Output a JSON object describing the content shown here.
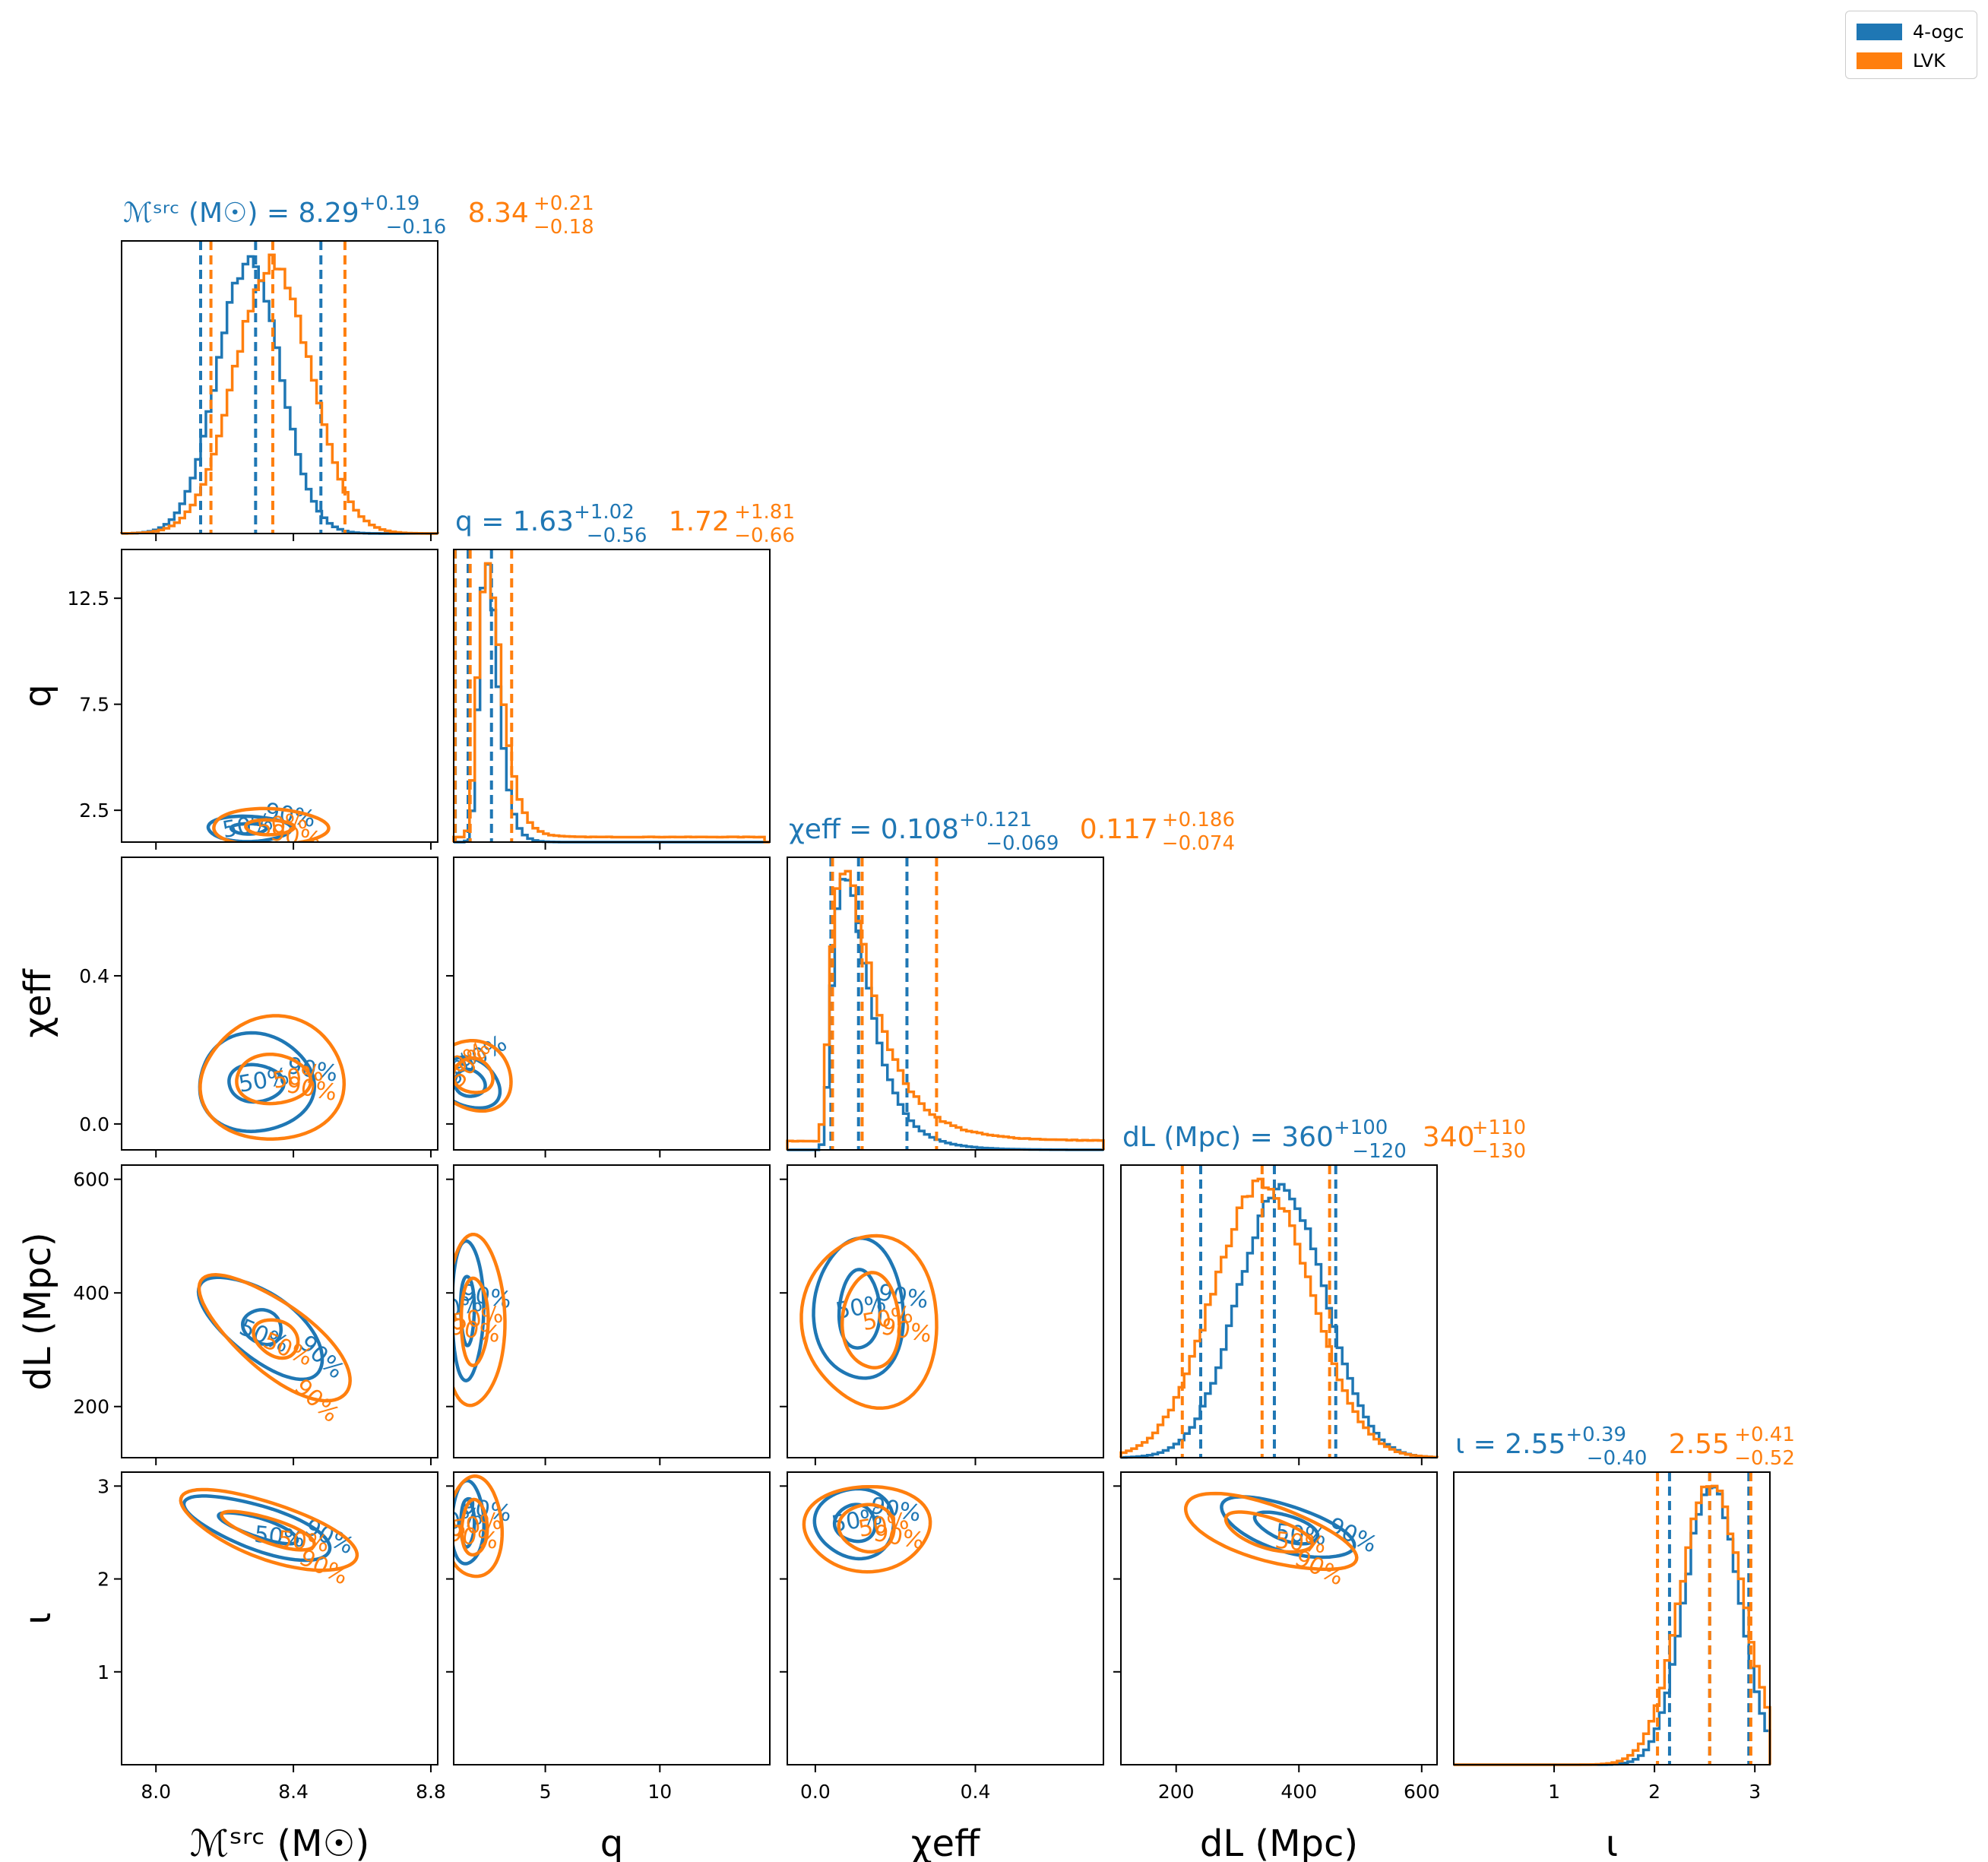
{
  "colors": {
    "s4ogc": "#1f77b4",
    "lvk": "#ff7f0e",
    "axis": "#000000",
    "legend_border": "#cccccc"
  },
  "legend": {
    "items": [
      {
        "label": "4-ogc",
        "color": "#1f77b4"
      },
      {
        "label": "LVK",
        "color": "#ff7f0e"
      }
    ],
    "placement": "top-right"
  },
  "chart_data": {
    "type": "corner",
    "grid": false,
    "series": [
      {
        "name": "4-ogc",
        "color": "#1f77b4"
      },
      {
        "name": "LVK",
        "color": "#ff7f0e"
      }
    ],
    "parameters": [
      {
        "key": "mchirp",
        "xlabel": "ℳˢʳᶜ (M☉)",
        "ylabel": "ℳˢʳᶜ (M☉)",
        "range": [
          7.9,
          8.82
        ],
        "ticks": [
          8.0,
          8.4,
          8.8
        ],
        "tick_labels": [
          "8.0",
          "8.4",
          "8.8"
        ],
        "title": {
          "prefix": "ℳˢʳᶜ (M☉) = ",
          "series": [
            {
              "median": "8.29",
              "plus": "+0.19",
              "minus": "−0.16"
            },
            {
              "median": "8.34",
              "plus": "+0.21",
              "minus": "−0.18"
            }
          ]
        },
        "stats": [
          {
            "median": 8.29,
            "lo": 8.13,
            "hi": 8.48
          },
          {
            "median": 8.34,
            "lo": 8.16,
            "hi": 8.55
          }
        ],
        "dist": [
          {
            "kind": "gauss",
            "mu": 8.27,
            "sd": 0.092
          },
          {
            "kind": "gauss",
            "mu": 8.34,
            "sd": 0.11
          }
        ]
      },
      {
        "key": "q",
        "xlabel": "q",
        "ylabel": "q",
        "range": [
          1.0,
          14.8
        ],
        "ticks": [
          5,
          10
        ],
        "tick_labels": [
          "5",
          "10"
        ],
        "yticks": [
          2.5,
          7.5,
          12.5
        ],
        "ytick_labels": [
          "2.5",
          "7.5",
          "12.5"
        ],
        "title": {
          "prefix": "q = ",
          "series": [
            {
              "median": "1.63",
              "plus": "+1.02",
              "minus": "−0.56"
            },
            {
              "median": "1.72",
              "plus": "+1.81",
              "minus": "−0.66"
            }
          ]
        },
        "stats": [
          {
            "median": 1.63,
            "lo": 1.07,
            "hi": 2.65
          },
          {
            "median": 1.72,
            "lo": 1.06,
            "hi": 3.53
          }
        ],
        "dist": [
          {
            "kind": "lognorm",
            "mu": 0.45,
            "sd": 0.28,
            "shift": 1.0
          },
          {
            "kind": "lognorm",
            "mu": 0.5,
            "sd": 0.34,
            "shift": 1.0,
            "tail": 0.02,
            "tailmax": 14.5
          }
        ]
      },
      {
        "key": "chieff",
        "xlabel": "χeff",
        "ylabel": "χeff",
        "range": [
          -0.07,
          0.72
        ],
        "ticks": [
          0.0,
          0.4
        ],
        "tick_labels": [
          "0.0",
          "0.4"
        ],
        "title": {
          "prefix": "χeff = ",
          "series": [
            {
              "median": "0.108",
              "plus": "+0.121",
              "minus": "−0.069"
            },
            {
              "median": "0.117",
              "plus": "+0.186",
              "minus": "−0.074"
            }
          ]
        },
        "stats": [
          {
            "median": 0.108,
            "lo": 0.039,
            "hi": 0.229
          },
          {
            "median": 0.117,
            "lo": 0.043,
            "hi": 0.303
          }
        ],
        "dist": [
          {
            "kind": "lognorm",
            "mu": -2.3,
            "sd": 0.55,
            "shift": 0.0
          },
          {
            "kind": "lognorm",
            "mu": -2.2,
            "sd": 0.65,
            "shift": 0.0,
            "tail": 0.04,
            "tailmax": 0.72
          }
        ]
      },
      {
        "key": "dl",
        "xlabel": "dL (Mpc)",
        "ylabel": "dL (Mpc)",
        "range": [
          110,
          625
        ],
        "ticks": [
          200,
          400,
          600
        ],
        "tick_labels": [
          "200",
          "400",
          "600"
        ],
        "title": {
          "prefix": "dL (Mpc) = ",
          "series": [
            {
              "median": "360",
              "plus": "+100",
              "minus": "−120"
            },
            {
              "median": "340",
              "plus": "+110",
              "minus": "−130"
            }
          ]
        },
        "stats": [
          {
            "median": 360,
            "lo": 240,
            "hi": 460
          },
          {
            "median": 340,
            "lo": 210,
            "hi": 450
          }
        ],
        "dist": [
          {
            "kind": "gauss",
            "mu": 372,
            "sd": 70
          },
          {
            "kind": "gauss",
            "mu": 340,
            "sd": 80
          }
        ]
      },
      {
        "key": "iota",
        "xlabel": "ι",
        "ylabel": "ι",
        "range": [
          0.0,
          3.15
        ],
        "ticks": [
          1,
          2,
          3
        ],
        "tick_labels": [
          "1",
          "2",
          "3"
        ],
        "title": {
          "prefix": "ι = ",
          "series": [
            {
              "median": "2.55",
              "plus": "+0.39",
              "minus": "−0.40"
            },
            {
              "median": "2.55",
              "plus": "+0.41",
              "minus": "−0.52"
            }
          ]
        },
        "stats": [
          {
            "median": 2.55,
            "lo": 2.15,
            "hi": 2.94
          },
          {
            "median": 2.55,
            "lo": 2.03,
            "hi": 2.96
          }
        ],
        "dist": [
          {
            "kind": "gauss",
            "mu": 2.57,
            "sd": 0.27,
            "trunc": 3.14
          },
          {
            "kind": "gauss",
            "mu": 2.57,
            "sd": 0.31,
            "trunc": 3.14
          }
        ]
      }
    ],
    "contour_labels": [
      "50%",
      "90%"
    ],
    "contours": [
      {
        "x": 0,
        "y": 1,
        "series": [
          {
            "cx": 8.27,
            "cy": 1.63,
            "rx": [
              0.05,
              0.12
            ],
            "ry": [
              0.25,
              0.6
            ],
            "rot": 0
          },
          {
            "cx": 8.33,
            "cy": 1.7,
            "rx": [
              0.07,
              0.17
            ],
            "ry": [
              0.35,
              0.85
            ],
            "rot": 0
          }
        ]
      },
      {
        "x": 0,
        "y": 2,
        "series": [
          {
            "cx": 8.29,
            "cy": 0.11,
            "rx": [
              0.08,
              0.17
            ],
            "ry": [
              0.05,
              0.13
            ],
            "rot": 0
          },
          {
            "cx": 8.34,
            "cy": 0.12,
            "rx": [
              0.11,
              0.21
            ],
            "ry": [
              0.065,
              0.165
            ],
            "rot": 0
          }
        ]
      },
      {
        "x": 0,
        "y": 3,
        "series": [
          {
            "cx": 8.31,
            "cy": 340,
            "rx": [
              0.06,
              0.22
            ],
            "ry": [
              28,
              55
            ],
            "rot": -0.72
          },
          {
            "cx": 8.35,
            "cy": 320,
            "rx": [
              0.07,
              0.27
            ],
            "ry": [
              30,
              60
            ],
            "rot": -0.72
          }
        ]
      },
      {
        "x": 0,
        "y": 4,
        "series": [
          {
            "cx": 8.3,
            "cy": 2.55,
            "rx": [
              0.12,
              0.22
            ],
            "ry": [
              0.1,
              0.24
            ],
            "rot": -0.35
          },
          {
            "cx": 8.33,
            "cy": 2.52,
            "rx": [
              0.14,
              0.27
            ],
            "ry": [
              0.13,
              0.3
            ],
            "rot": -0.35
          }
        ]
      },
      {
        "x": 1,
        "y": 2,
        "series": [
          {
            "cx": 1.7,
            "cy": 0.11,
            "rx": [
              0.6,
              1.1
            ],
            "ry": [
              0.04,
              0.08
            ],
            "rot": 0.9
          },
          {
            "cx": 1.85,
            "cy": 0.13,
            "rx": [
              0.8,
              1.6
            ],
            "ry": [
              0.05,
              0.1
            ],
            "rot": 0.9
          }
        ]
      },
      {
        "x": 1,
        "y": 3,
        "series": [
          {
            "cx": 1.6,
            "cy": 370,
            "rx": [
              0.3,
              0.7
            ],
            "ry": [
              60,
              120
            ],
            "rot": 0
          },
          {
            "cx": 1.9,
            "cy": 350,
            "rx": [
              0.6,
              1.3
            ],
            "ry": [
              75,
              150
            ],
            "rot": 0
          }
        ]
      },
      {
        "x": 1,
        "y": 4,
        "series": [
          {
            "cx": 1.6,
            "cy": 2.6,
            "rx": [
              0.3,
              0.7
            ],
            "ry": [
              0.25,
              0.45
            ],
            "rot": 0
          },
          {
            "cx": 1.9,
            "cy": 2.55,
            "rx": [
              0.55,
              1.2
            ],
            "ry": [
              0.3,
              0.55
            ],
            "rot": 0
          }
        ]
      },
      {
        "x": 2,
        "y": 3,
        "series": [
          {
            "cx": 0.11,
            "cy": 370,
            "rx": [
              0.05,
              0.11
            ],
            "ry": [
              70,
              125
            ],
            "rot": 0
          },
          {
            "cx": 0.14,
            "cy": 350,
            "rx": [
              0.07,
              0.17
            ],
            "ry": [
              85,
              150
            ],
            "rot": 0
          }
        ]
      },
      {
        "x": 2,
        "y": 4,
        "series": [
          {
            "cx": 0.1,
            "cy": 2.6,
            "rx": [
              0.05,
              0.1
            ],
            "ry": [
              0.2,
              0.37
            ],
            "rot": 0
          },
          {
            "cx": 0.13,
            "cy": 2.55,
            "rx": [
              0.07,
              0.16
            ],
            "ry": [
              0.25,
              0.45
            ],
            "rot": 0
          }
        ]
      },
      {
        "x": 3,
        "y": 4,
        "series": [
          {
            "cx": 380,
            "cy": 2.55,
            "rx": [
              55,
              115
            ],
            "ry": [
              0.13,
              0.24
            ],
            "rot": -0.35
          },
          {
            "cx": 350,
            "cy": 2.5,
            "rx": [
              75,
              145
            ],
            "ry": [
              0.16,
              0.3
            ],
            "rot": -0.35
          }
        ]
      }
    ]
  }
}
